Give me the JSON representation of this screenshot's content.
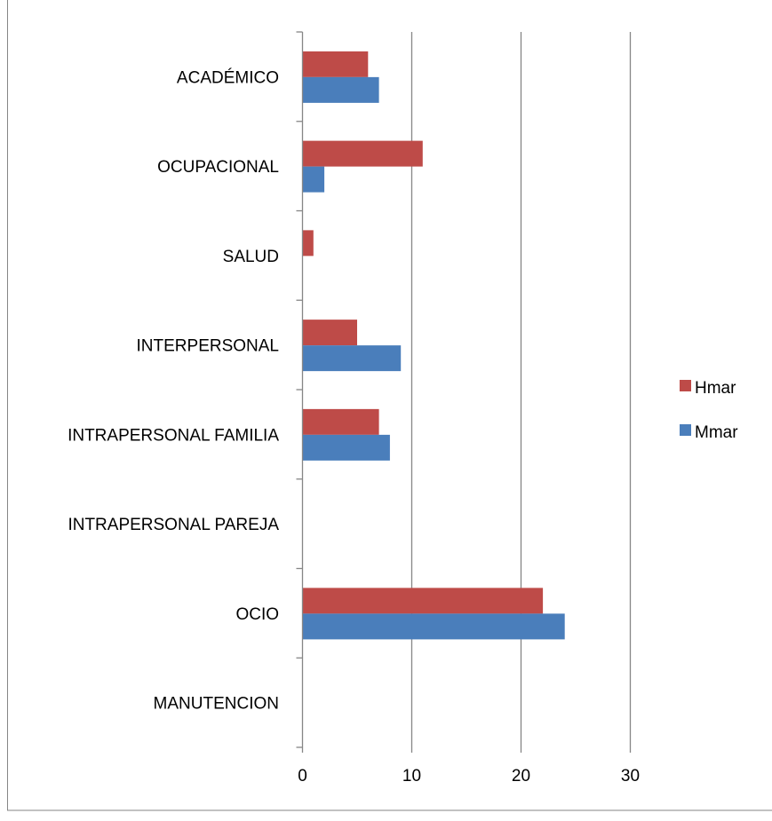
{
  "chart_data": {
    "type": "bar",
    "orientation": "horizontal",
    "title": "",
    "xlabel": "",
    "ylabel": "",
    "categories": [
      "MANUTENCION",
      "OCIO",
      "INTRAPERSONAL PAREJA",
      "INTRAPERSONAL FAMILIA",
      "INTERPERSONAL",
      "SALUD",
      "OCUPACIONAL",
      "ACADÉMICO"
    ],
    "series": [
      {
        "name": "Mmar",
        "values": [
          0,
          24,
          0,
          8,
          9,
          0,
          2,
          7
        ]
      },
      {
        "name": "Hmar",
        "values": [
          0,
          22,
          0,
          7,
          5,
          1,
          11,
          6
        ]
      }
    ],
    "xlim": [
      0,
      30
    ],
    "xticks": [
      0,
      10,
      20,
      30
    ],
    "grid": "vertical major gridlines",
    "legend_position": "right",
    "colors": {
      "Mmar": "#4a7ebb",
      "Hmar": "#be4b48",
      "grid": "#868686",
      "border": "#868686"
    }
  }
}
